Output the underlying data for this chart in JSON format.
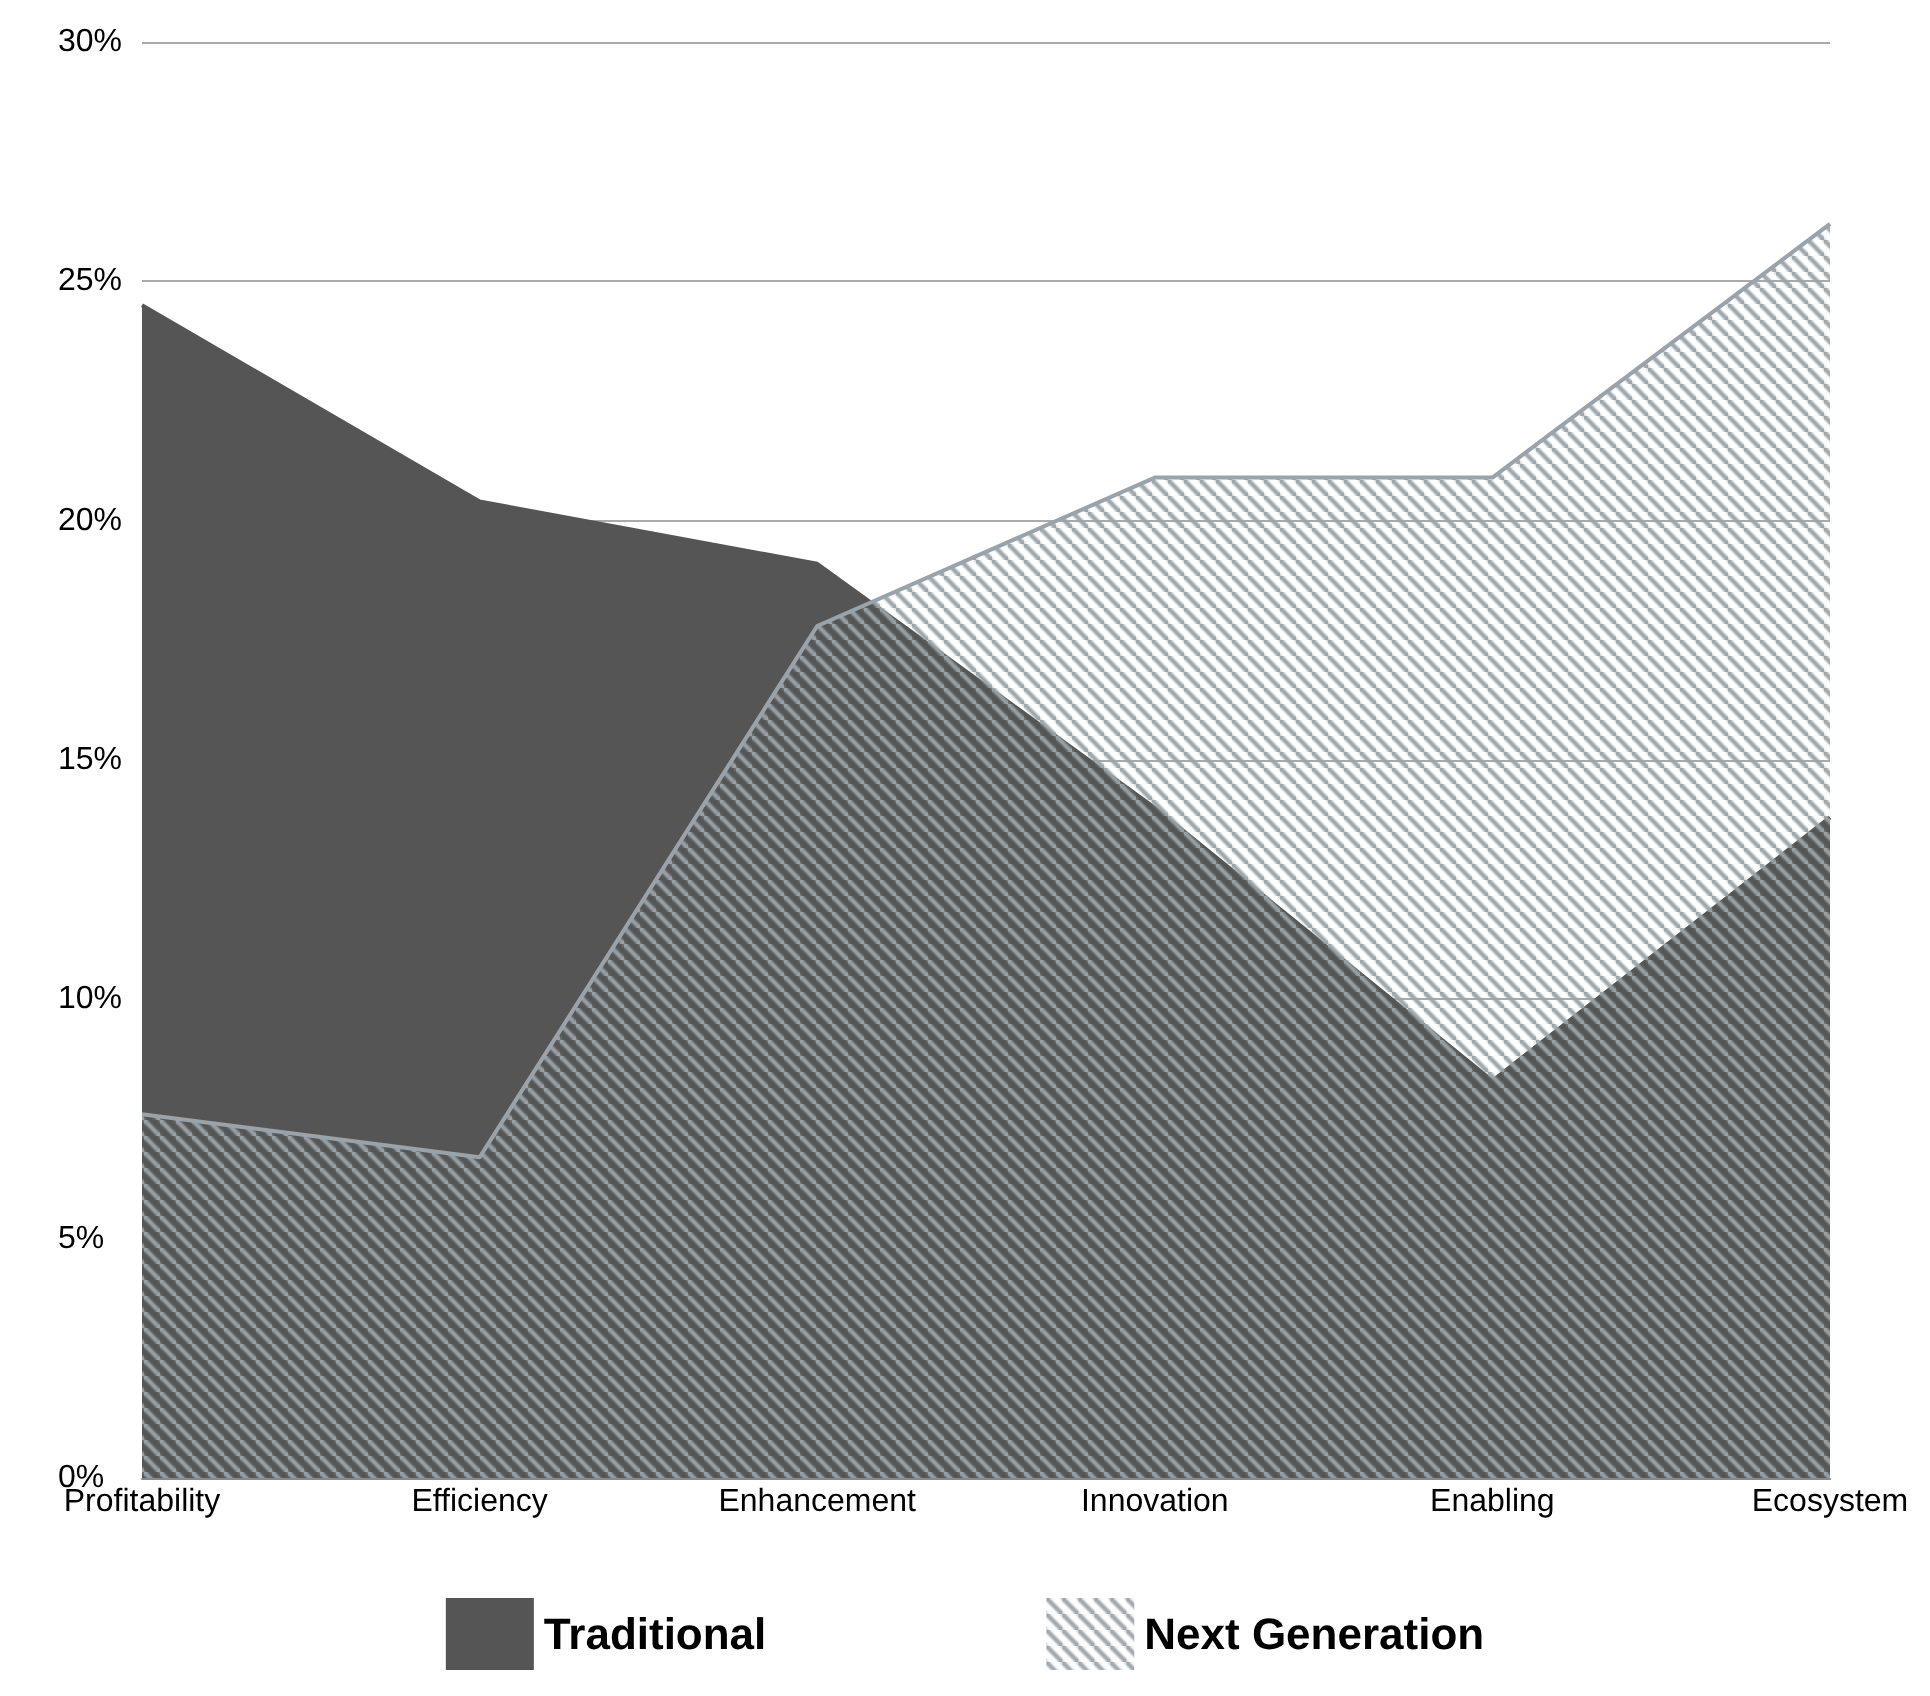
{
  "chart_data": {
    "type": "area",
    "categories": [
      "Profitability",
      "Efficiency",
      "Enhancement",
      "Innovation",
      "Enabling",
      "Ecosystem"
    ],
    "series": [
      {
        "name": "Traditional",
        "color": "#555555",
        "values": [
          24.5,
          20.4,
          19.1,
          14.0,
          8.3,
          13.8
        ]
      },
      {
        "name": "Next Generation",
        "color": "#9aa3aa",
        "values": [
          7.6,
          6.7,
          17.8,
          20.9,
          20.9,
          26.2
        ]
      }
    ],
    "ylim": [
      0,
      30
    ],
    "yticks": [
      {
        "value": 0,
        "label": "0%"
      },
      {
        "value": 5,
        "label": "5%"
      },
      {
        "value": 10,
        "label": "10%"
      },
      {
        "value": 15,
        "label": "15%"
      },
      {
        "value": 20,
        "label": "20%"
      },
      {
        "value": 25,
        "label": "25%"
      },
      {
        "value": 30,
        "label": "30%"
      }
    ],
    "grid": "y",
    "legend": "bottom",
    "marker": "none"
  }
}
